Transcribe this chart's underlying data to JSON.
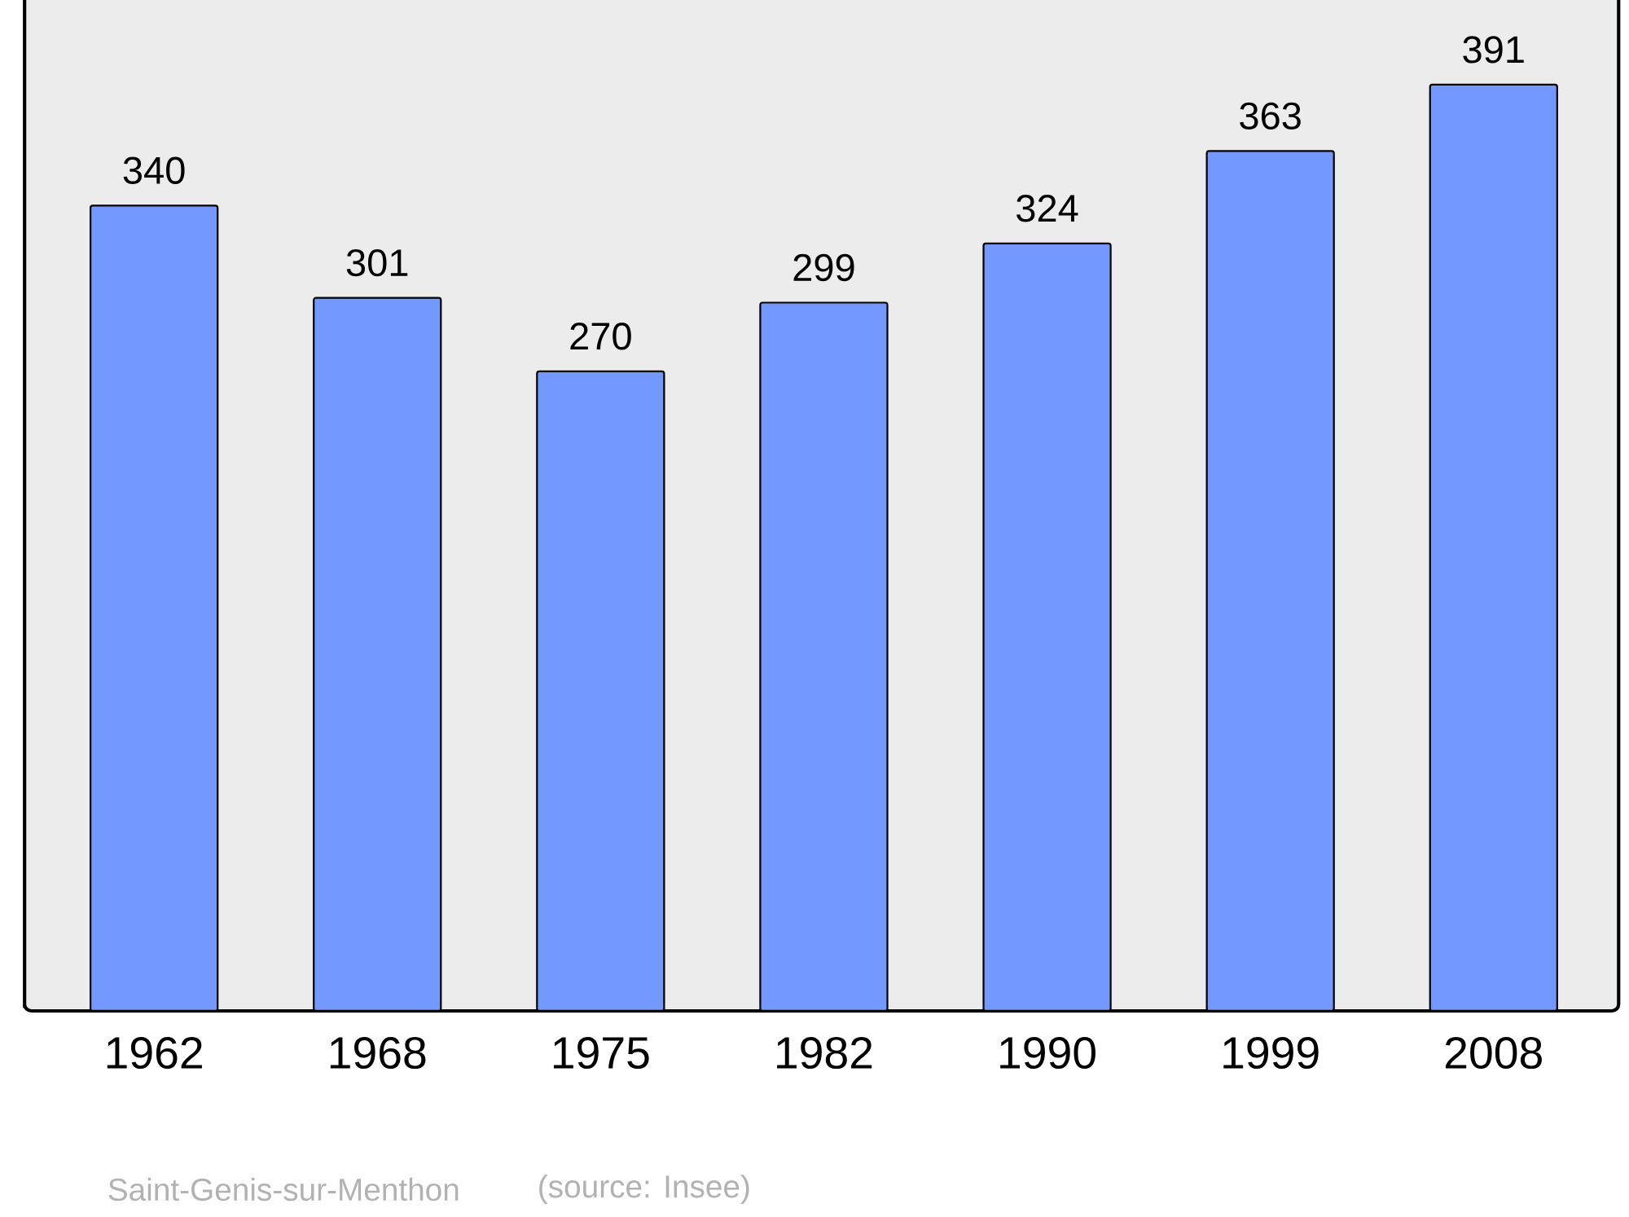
{
  "chart_data": {
    "type": "bar",
    "categories": [
      "1962",
      "1968",
      "1975",
      "1982",
      "1990",
      "1999",
      "2008"
    ],
    "values": [
      340,
      301,
      270,
      299,
      324,
      363,
      391
    ],
    "color": "#7399ff",
    "data_labels": true,
    "annotations": [
      "Saint-Genis-sur-Menthon",
      "(source: Insee)"
    ]
  }
}
